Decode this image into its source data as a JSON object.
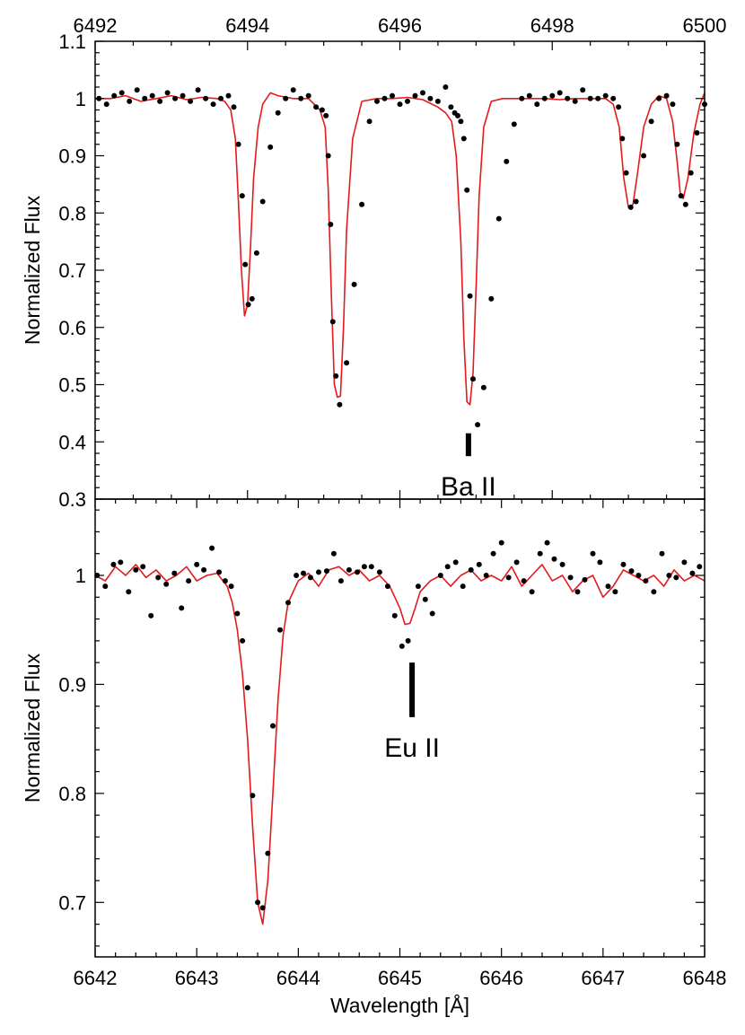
{
  "chart_data": [
    {
      "type": "scatter",
      "title": "",
      "xlabel": "",
      "xlabel_top": "",
      "ylabel": "Normalized Flux",
      "xlim": [
        6492,
        6500
      ],
      "ylim": [
        0.3,
        1.1
      ],
      "xticks": [
        "6492",
        "6494",
        "6496",
        "6498",
        "6500"
      ],
      "yticks": [
        "0.3",
        "0.4",
        "0.5",
        "0.6",
        "0.7",
        "0.8",
        "0.9",
        "1",
        "1.1"
      ],
      "colors": {
        "observed": "#000000",
        "model": "#e41a1c"
      },
      "annotation": {
        "text": "Ba II",
        "x": 6496.9,
        "y_top": 0.415,
        "y_bottom": 0.375
      },
      "series": [
        {
          "style": "points",
          "x": [
            6492.05,
            6492.15,
            6492.25,
            6492.35,
            6492.45,
            6492.55,
            6492.65,
            6492.75,
            6492.85,
            6492.95,
            6493.05,
            6493.15,
            6493.25,
            6493.35,
            6493.45,
            6493.55,
            6493.65,
            6493.75,
            6493.82,
            6493.88,
            6493.93,
            6493.97,
            6494.01,
            6494.06,
            6494.12,
            6494.2,
            6494.3,
            6494.4,
            6494.5,
            6494.6,
            6494.7,
            6494.8,
            6494.9,
            6494.98,
            6495.03,
            6495.06,
            6495.09,
            6495.12,
            6495.16,
            6495.21,
            6495.3,
            6495.4,
            6495.5,
            6495.6,
            6495.7,
            6495.8,
            6495.9,
            6496.0,
            6496.1,
            6496.2,
            6496.3,
            6496.4,
            6496.5,
            6496.6,
            6496.67,
            6496.72,
            6496.76,
            6496.8,
            6496.84,
            6496.88,
            6496.92,
            6496.96,
            6497.02,
            6497.1,
            6497.2,
            6497.3,
            6497.4,
            6497.5,
            6497.6,
            6497.7,
            6497.8,
            6497.9,
            6498.0,
            6498.1,
            6498.2,
            6498.3,
            6498.4,
            6498.5,
            6498.6,
            6498.7,
            6498.8,
            6498.87,
            6498.92,
            6498.97,
            6499.03,
            6499.1,
            6499.2,
            6499.3,
            6499.4,
            6499.5,
            6499.58,
            6499.64,
            6499.69,
            6499.75,
            6499.82,
            6499.9,
            6500.0
          ],
          "y": [
            1.0,
            0.99,
            1.005,
            1.01,
            0.995,
            1.015,
            1.0,
            1.005,
            0.995,
            1.01,
            1.0,
            1.005,
            0.995,
            1.015,
            1.0,
            0.99,
            1.0,
            1.005,
            0.985,
            0.92,
            0.83,
            0.71,
            0.64,
            0.65,
            0.73,
            0.82,
            0.915,
            0.975,
            1.0,
            1.015,
            1.0,
            1.005,
            0.985,
            0.98,
            0.97,
            0.9,
            0.78,
            0.61,
            0.515,
            0.465,
            0.538,
            0.675,
            0.815,
            0.96,
            0.995,
            1.0,
            1.005,
            0.99,
            0.995,
            1.005,
            1.01,
            1.0,
            0.995,
            1.02,
            0.985,
            0.975,
            0.97,
            0.96,
            0.93,
            0.84,
            0.655,
            0.51,
            0.43,
            0.495,
            0.65,
            0.79,
            0.89,
            0.955,
            1.0,
            1.005,
            0.99,
            1.0,
            1.005,
            1.01,
            1.0,
            0.995,
            1.015,
            1.0,
            1.0,
            1.005,
            1.0,
            0.985,
            0.93,
            0.87,
            0.81,
            0.82,
            0.9,
            0.96,
            1.0,
            1.005,
            0.99,
            0.92,
            0.83,
            0.815,
            0.87,
            0.94,
            0.99
          ]
        },
        {
          "style": "line",
          "x": [
            6492.0,
            6492.2,
            6492.4,
            6492.6,
            6492.8,
            6493.0,
            6493.2,
            6493.4,
            6493.6,
            6493.7,
            6493.78,
            6493.84,
            6493.88,
            6493.92,
            6493.96,
            6494.0,
            6494.04,
            6494.08,
            6494.14,
            6494.2,
            6494.3,
            6494.4,
            6494.6,
            6494.8,
            6494.95,
            6495.02,
            6495.06,
            6495.1,
            6495.14,
            6495.18,
            6495.22,
            6495.26,
            6495.3,
            6495.38,
            6495.5,
            6495.7,
            6495.9,
            6496.1,
            6496.3,
            6496.5,
            6496.6,
            6496.68,
            6496.74,
            6496.8,
            6496.84,
            6496.88,
            6496.92,
            6496.96,
            6497.0,
            6497.04,
            6497.1,
            6497.2,
            6497.35,
            6497.5,
            6497.7,
            6497.9,
            6498.1,
            6498.3,
            6498.5,
            6498.7,
            6498.8,
            6498.88,
            6498.94,
            6499.0,
            6499.06,
            6499.12,
            6499.2,
            6499.3,
            6499.4,
            6499.5,
            6499.58,
            6499.64,
            6499.68,
            6499.72,
            6499.78,
            6499.86,
            6499.94,
            6500.0
          ],
          "y": [
            1.0,
            1.0,
            1.005,
            0.995,
            1.0,
            1.005,
            0.998,
            1.002,
            1.0,
            0.995,
            0.98,
            0.93,
            0.82,
            0.7,
            0.62,
            0.64,
            0.74,
            0.86,
            0.95,
            0.99,
            1.01,
            1.005,
            1.0,
            1.0,
            0.98,
            0.95,
            0.84,
            0.66,
            0.5,
            0.478,
            0.48,
            0.6,
            0.77,
            0.93,
            0.995,
            1.0,
            1.0,
            1.002,
            0.998,
            0.985,
            0.975,
            0.96,
            0.9,
            0.75,
            0.58,
            0.47,
            0.465,
            0.52,
            0.67,
            0.83,
            0.95,
            0.995,
            1.0,
            1.0,
            1.0,
            1.0,
            0.998,
            1.0,
            1.0,
            1.0,
            0.99,
            0.95,
            0.86,
            0.81,
            0.815,
            0.87,
            0.95,
            0.99,
            1.005,
            1.0,
            0.96,
            0.89,
            0.835,
            0.825,
            0.86,
            0.94,
            0.99,
            1.01
          ]
        }
      ]
    },
    {
      "type": "scatter",
      "title": "",
      "xlabel": "Wavelength [Å]",
      "ylabel": "Normalized Flux",
      "xlim": [
        6642,
        6648
      ],
      "ylim": [
        0.65,
        1.07
      ],
      "xticks": [
        "6642",
        "6643",
        "6644",
        "6645",
        "6646",
        "6647",
        "6648"
      ],
      "yticks": [
        "0.7",
        "0.8",
        "0.9",
        "1"
      ],
      "colors": {
        "observed": "#000000",
        "model": "#e41a1c"
      },
      "annotation": {
        "text": "Eu II",
        "x": 6645.12,
        "y_top": 0.92,
        "y_bottom": 0.87
      },
      "series": [
        {
          "style": "points",
          "x": [
            6642.02,
            6642.1,
            6642.18,
            6642.25,
            6642.33,
            6642.4,
            6642.47,
            6642.55,
            6642.62,
            6642.7,
            6642.78,
            6642.85,
            6642.92,
            6643.0,
            6643.07,
            6643.15,
            6643.22,
            6643.28,
            6643.34,
            6643.4,
            6643.45,
            6643.5,
            6643.55,
            6643.6,
            6643.65,
            6643.7,
            6643.75,
            6643.82,
            6643.9,
            6643.98,
            6644.05,
            6644.12,
            6644.2,
            6644.28,
            6644.35,
            6644.42,
            6644.5,
            6644.58,
            6644.65,
            6644.72,
            6644.8,
            6644.88,
            6644.95,
            6645.02,
            6645.08,
            6645.12,
            6645.18,
            6645.25,
            6645.32,
            6645.4,
            6645.47,
            6645.55,
            6645.62,
            6645.7,
            6645.78,
            6645.85,
            6645.92,
            6646.0,
            6646.07,
            6646.15,
            6646.22,
            6646.3,
            6646.38,
            6646.45,
            6646.52,
            6646.6,
            6646.68,
            6646.75,
            6646.82,
            6646.9,
            6646.97,
            6647.05,
            6647.12,
            6647.2,
            6647.28,
            6647.35,
            6647.42,
            6647.5,
            6647.58,
            6647.65,
            6647.72,
            6647.8,
            6647.88,
            6647.95
          ],
          "y": [
            1.0,
            0.99,
            1.01,
            1.012,
            0.985,
            1.005,
            1.008,
            0.963,
            0.998,
            0.992,
            1.002,
            0.97,
            0.995,
            1.01,
            1.005,
            1.025,
            1.003,
            0.995,
            0.99,
            0.965,
            0.94,
            0.897,
            0.798,
            0.7,
            0.695,
            0.745,
            0.862,
            0.95,
            0.975,
            1.0,
            1.002,
            0.998,
            1.003,
            1.004,
            1.02,
            0.995,
            1.005,
            1.003,
            1.008,
            1.008,
            1.003,
            0.99,
            0.963,
            0.935,
            0.94,
            0.91,
            0.99,
            0.978,
            0.965,
            1.0,
            1.008,
            1.012,
            0.99,
            1.005,
            1.01,
            1.0,
            1.02,
            1.03,
            0.998,
            1.012,
            0.995,
            0.985,
            1.02,
            1.03,
            1.015,
            1.01,
            0.998,
            0.985,
            0.996,
            1.02,
            1.012,
            0.99,
            0.985,
            1.01,
            1.004,
            1.0,
            0.995,
            0.985,
            1.02,
            1.0,
            0.998,
            1.012,
            1.002,
            1.008
          ]
        },
        {
          "style": "line",
          "x": [
            6642.0,
            6642.1,
            6642.2,
            6642.3,
            6642.4,
            6642.5,
            6642.6,
            6642.7,
            6642.8,
            6642.9,
            6643.0,
            6643.1,
            6643.2,
            6643.3,
            6643.35,
            6643.4,
            6643.45,
            6643.5,
            6643.55,
            6643.6,
            6643.65,
            6643.7,
            6643.75,
            6643.8,
            6643.85,
            6643.9,
            6644.0,
            6644.1,
            6644.2,
            6644.3,
            6644.4,
            6644.5,
            6644.6,
            6644.7,
            6644.8,
            6644.9,
            6645.0,
            6645.05,
            6645.1,
            6645.15,
            6645.2,
            6645.3,
            6645.4,
            6645.5,
            6645.6,
            6645.7,
            6645.8,
            6645.9,
            6646.0,
            6646.1,
            6646.2,
            6646.3,
            6646.4,
            6646.5,
            6646.6,
            6646.7,
            6646.8,
            6646.9,
            6647.0,
            6647.1,
            6647.2,
            6647.3,
            6647.4,
            6647.5,
            6647.6,
            6647.7,
            6647.8,
            6647.9,
            6648.0
          ],
          "y": [
            1.0,
            0.995,
            1.008,
            1.0,
            1.01,
            0.998,
            1.005,
            0.995,
            1.0,
            1.008,
            0.995,
            1.0,
            1.002,
            0.99,
            0.975,
            0.95,
            0.91,
            0.85,
            0.77,
            0.7,
            0.68,
            0.72,
            0.8,
            0.885,
            0.945,
            0.975,
            0.995,
            1.002,
            0.99,
            1.005,
            1.008,
            1.0,
            1.005,
            0.995,
            1.0,
            0.99,
            0.97,
            0.955,
            0.956,
            0.97,
            0.985,
            0.995,
            1.0,
            0.99,
            1.0,
            1.005,
            0.995,
            1.0,
            0.995,
            1.008,
            0.99,
            1.0,
            1.01,
            0.995,
            1.0,
            0.985,
            0.995,
            1.0,
            0.98,
            0.99,
            1.005,
            1.0,
            0.995,
            1.0,
            0.99,
            1.005,
            0.995,
            1.0,
            0.995
          ]
        }
      ]
    }
  ]
}
